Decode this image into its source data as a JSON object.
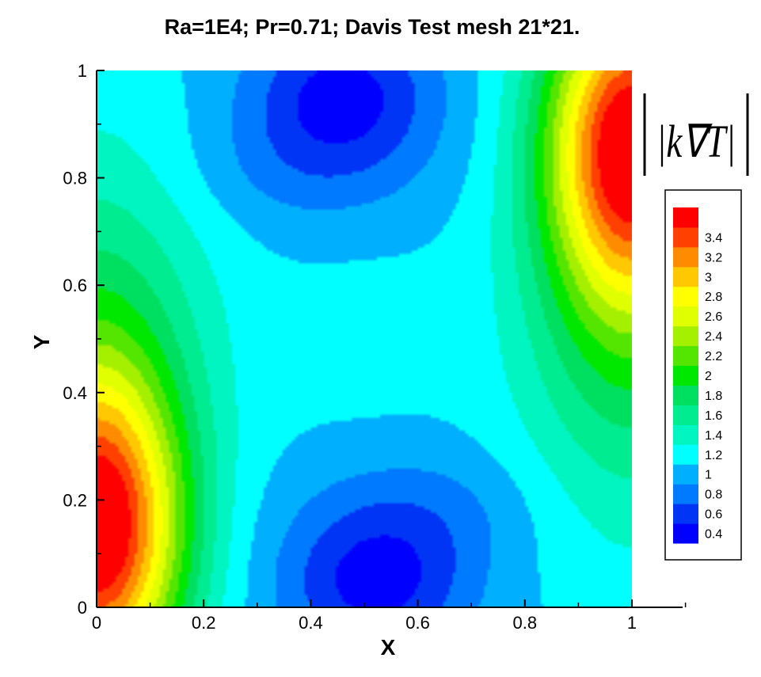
{
  "chart_data": {
    "type": "heatmap",
    "title": "Ra=1E4; Pr=0.71; Davis Test mesh 21*21.",
    "xlabel": "X",
    "ylabel": "Y",
    "xlim": [
      0,
      1
    ],
    "ylim": [
      0,
      1
    ],
    "x_ticks": [
      "0",
      "0.2",
      "0.4",
      "0.6",
      "0.8",
      "1"
    ],
    "y_ticks": [
      "0",
      "0.2",
      "0.4",
      "0.6",
      "0.8",
      "1"
    ],
    "quantity_label": "|k∇T|",
    "grid": false,
    "legend_position": "right",
    "levels": [
      {
        "label": "0.4",
        "color": "#0000ff"
      },
      {
        "label": "0.6",
        "color": "#0035f6"
      },
      {
        "label": "0.8",
        "color": "#007aff"
      },
      {
        "label": "1",
        "color": "#00b0ff"
      },
      {
        "label": "1.2",
        "color": "#00ffff"
      },
      {
        "label": "1.4",
        "color": "#00f5c0"
      },
      {
        "label": "1.6",
        "color": "#00ec90"
      },
      {
        "label": "1.8",
        "color": "#00e060"
      },
      {
        "label": "2",
        "color": "#00e800"
      },
      {
        "label": "2.2",
        "color": "#55e600"
      },
      {
        "label": "2.4",
        "color": "#a5f000"
      },
      {
        "label": "2.6",
        "color": "#e0ff00"
      },
      {
        "label": "2.8",
        "color": "#ffff00"
      },
      {
        "label": "3",
        "color": "#ffc800"
      },
      {
        "label": "3.2",
        "color": "#ff8c00"
      },
      {
        "label": "3.4",
        "color": "#ff4000"
      },
      {
        "label": "",
        "color": "#ff0000"
      }
    ],
    "field_samples": {
      "x": [
        0,
        0.05,
        0.1,
        0.15,
        0.2,
        0.25,
        0.3,
        0.35,
        0.4,
        0.45,
        0.5,
        0.55,
        0.6,
        0.65,
        0.7,
        0.75,
        0.8,
        0.85,
        0.9,
        0.95,
        1
      ],
      "y": [
        0,
        0.05,
        0.1,
        0.15,
        0.2,
        0.25,
        0.3,
        0.35,
        0.4,
        0.45,
        0.5,
        0.55,
        0.6,
        0.65,
        0.7,
        0.75,
        0.8,
        0.85,
        0.9,
        0.95,
        1
      ],
      "peaks": [
        {
          "x": 0.0,
          "y": 0.13,
          "value": 3.45
        },
        {
          "x": 1.0,
          "y": 0.87,
          "value": 3.45
        }
      ],
      "minima": [
        {
          "x": 0.52,
          "y": 0.05,
          "value": 0.35
        },
        {
          "x": 0.46,
          "y": 0.95,
          "value": 0.35
        }
      ]
    }
  }
}
